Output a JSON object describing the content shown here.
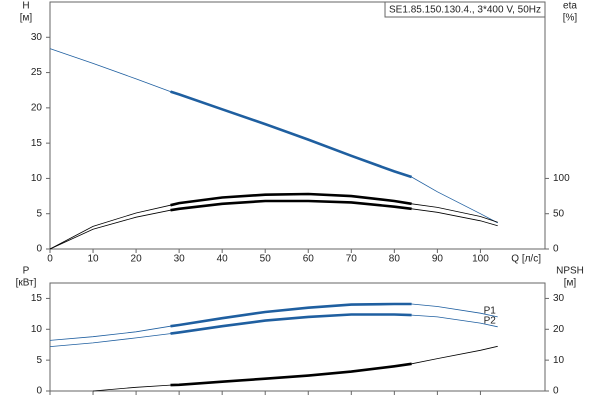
{
  "chart_data": [
    {
      "type": "line",
      "title": "SE1.85.150.130.4., 3*400 V, 50Hz",
      "y_label": "H",
      "y_unit": "[м]",
      "y2_label": "eta",
      "y2_unit": "[%]",
      "x_label": "Q [л/с]",
      "xlim": [
        0,
        115
      ],
      "ylim": [
        0,
        35
      ],
      "y2lim": [
        0,
        350
      ],
      "xticks": [
        0,
        10,
        20,
        30,
        40,
        50,
        60,
        70,
        80,
        90,
        100
      ],
      "yticks": [
        0,
        5,
        10,
        15,
        20,
        25,
        30
      ],
      "y2ticks": [
        0,
        50,
        100
      ],
      "highlight_x": [
        28,
        84
      ],
      "x": [
        0,
        10,
        20,
        28,
        30,
        40,
        50,
        60,
        70,
        80,
        84,
        90,
        100,
        104
      ],
      "series": [
        {
          "color": "#1f5fa0",
          "values": [
            28.4,
            26.3,
            24.1,
            22.3,
            21.9,
            19.8,
            17.7,
            15.5,
            13.2,
            11.0,
            10.2,
            8.1,
            5.0,
            3.7
          ]
        },
        {
          "color": "#000000",
          "axis": "y2",
          "values": [
            0,
            32,
            51,
            62,
            65,
            73,
            77,
            78,
            75,
            68,
            64,
            59,
            46,
            38
          ]
        },
        {
          "color": "#000000",
          "axis": "y2",
          "values": [
            0,
            28,
            45,
            55,
            57,
            64,
            68,
            68,
            66,
            60,
            57,
            52,
            40,
            33
          ]
        }
      ]
    },
    {
      "type": "line",
      "y_label": "P",
      "y_unit": "[кВт]",
      "y2_label": "NPSH",
      "y2_unit": "[м]",
      "xlim": [
        0,
        115
      ],
      "ylim": [
        0,
        17.5
      ],
      "y2lim": [
        0,
        35
      ],
      "xticks": [
        0,
        10,
        20,
        30,
        40,
        50,
        60,
        70,
        80,
        90,
        100
      ],
      "yticks": [
        0,
        5,
        10,
        15
      ],
      "y2ticks": [
        0,
        10,
        20,
        30
      ],
      "highlight_x": [
        28,
        84
      ],
      "x": [
        0,
        10,
        20,
        28,
        30,
        40,
        50,
        60,
        70,
        80,
        84,
        90,
        100,
        104
      ],
      "series": [
        {
          "name": "P1",
          "color": "#1f5fa0",
          "values": [
            8.2,
            8.8,
            9.6,
            10.5,
            10.7,
            11.8,
            12.8,
            13.5,
            14.0,
            14.1,
            14.1,
            13.7,
            12.6,
            12.0
          ]
        },
        {
          "name": "P2",
          "color": "#1f5fa0",
          "values": [
            7.2,
            7.8,
            8.6,
            9.3,
            9.5,
            10.5,
            11.4,
            12.0,
            12.4,
            12.4,
            12.3,
            12.0,
            11.0,
            10.4
          ]
        },
        {
          "color": "#000000",
          "axis": "y2",
          "values": [
            null,
            0,
            1.2,
            1.9,
            2.0,
            3.0,
            4.0,
            5.0,
            6.3,
            8.0,
            8.8,
            10.5,
            13.2,
            14.5
          ]
        }
      ]
    }
  ]
}
